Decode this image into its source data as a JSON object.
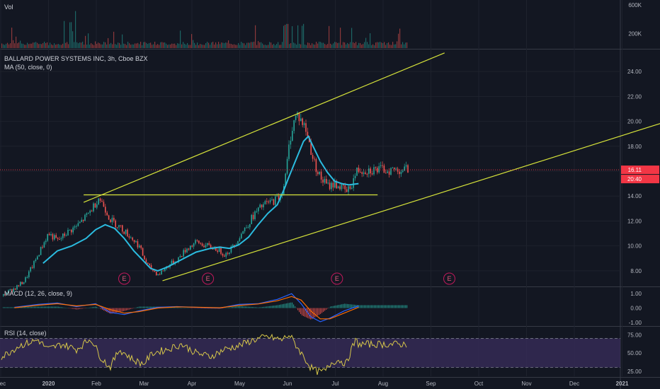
{
  "colors": {
    "background": "#131722",
    "grid": "#1e222d",
    "up": "#26a69a",
    "down": "#ef5350",
    "ma": "#2bbce0",
    "trendline": "#d6e33a",
    "macd_line": "#2962ff",
    "signal_line": "#ff6d00",
    "rsi_line": "#d6c64a",
    "rsi_band": "#3a2d5c",
    "price_tag": "#f23645"
  },
  "chart_data": [
    {
      "type": "bar",
      "pane": "volume",
      "title": "Vol",
      "y_ticks": [
        "600K",
        "200K"
      ],
      "ylim": [
        0,
        650000
      ],
      "description_values": "volume bars"
    },
    {
      "type": "candlestick",
      "pane": "price",
      "title": "BALLARD POWER SYSTEMS INC, 3h, Cboe BZX",
      "indicator": "MA (50, close, 0)",
      "y_ticks": [
        "24.00",
        "22.00",
        "20.00",
        "18.00",
        "16.00",
        "14.00",
        "12.00",
        "10.00",
        "8.00"
      ],
      "ylim": [
        6.8,
        25.6
      ],
      "x_ticks": [
        "Dec",
        "2020",
        "Feb",
        "Mar",
        "Apr",
        "May",
        "Jun",
        "Jul",
        "Aug",
        "Sep",
        "Oct",
        "Nov",
        "Dec",
        "2021"
      ],
      "last_price": "16.11",
      "countdown": "20:40",
      "price_path": [
        [
          0.05,
          6.0
        ],
        [
          0.15,
          6.3
        ],
        [
          0.3,
          6.6
        ],
        [
          0.5,
          7.2
        ],
        [
          0.7,
          8.6
        ],
        [
          0.9,
          10.2
        ],
        [
          1.0,
          11.0
        ],
        [
          1.2,
          10.4
        ],
        [
          1.4,
          11.1
        ],
        [
          1.6,
          11.6
        ],
        [
          1.8,
          12.4
        ],
        [
          1.95,
          13.2
        ],
        [
          2.05,
          13.9
        ],
        [
          2.15,
          13.3
        ],
        [
          2.3,
          12.1
        ],
        [
          2.5,
          11.5
        ],
        [
          2.7,
          10.8
        ],
        [
          2.9,
          10.0
        ],
        [
          3.0,
          9.0
        ],
        [
          3.1,
          8.3
        ],
        [
          3.3,
          7.7
        ],
        [
          3.5,
          8.4
        ],
        [
          3.7,
          8.9
        ],
        [
          3.9,
          9.8
        ],
        [
          4.1,
          10.3
        ],
        [
          4.3,
          10.0
        ],
        [
          4.5,
          9.8
        ],
        [
          4.7,
          9.3
        ],
        [
          4.9,
          10.1
        ],
        [
          5.0,
          10.8
        ],
        [
          5.15,
          11.6
        ],
        [
          5.3,
          12.5
        ],
        [
          5.5,
          13.3
        ],
        [
          5.7,
          13.6
        ],
        [
          5.85,
          14.0
        ],
        [
          5.95,
          15.2
        ],
        [
          6.05,
          18.5
        ],
        [
          6.12,
          19.8
        ],
        [
          6.2,
          20.6
        ],
        [
          6.3,
          20.0
        ],
        [
          6.4,
          19.2
        ],
        [
          6.55,
          16.8
        ],
        [
          6.7,
          15.4
        ],
        [
          6.85,
          14.8
        ],
        [
          7.0,
          15.0
        ],
        [
          7.15,
          14.6
        ],
        [
          7.25,
          14.3
        ],
        [
          7.35,
          15.0
        ],
        [
          7.45,
          16.0
        ],
        [
          7.5,
          16.11
        ]
      ],
      "ma_path": [
        [
          0.9,
          8.6
        ],
        [
          1.2,
          9.6
        ],
        [
          1.5,
          10.0
        ],
        [
          1.8,
          10.6
        ],
        [
          2.0,
          11.3
        ],
        [
          2.2,
          11.7
        ],
        [
          2.4,
          11.4
        ],
        [
          2.6,
          10.6
        ],
        [
          2.8,
          9.6
        ],
        [
          3.0,
          8.8
        ],
        [
          3.15,
          8.2
        ],
        [
          3.3,
          8.0
        ],
        [
          3.5,
          8.3
        ],
        [
          3.8,
          8.9
        ],
        [
          4.1,
          9.5
        ],
        [
          4.4,
          9.8
        ],
        [
          4.6,
          9.9
        ],
        [
          4.8,
          9.8
        ],
        [
          5.0,
          10.1
        ],
        [
          5.2,
          10.7
        ],
        [
          5.4,
          11.7
        ],
        [
          5.6,
          12.6
        ],
        [
          5.8,
          13.3
        ],
        [
          5.95,
          14.6
        ],
        [
          6.05,
          15.6
        ],
        [
          6.2,
          17.0
        ],
        [
          6.35,
          18.4
        ],
        [
          6.45,
          18.8
        ],
        [
          6.55,
          18.0
        ],
        [
          6.7,
          16.8
        ],
        [
          6.85,
          15.9
        ],
        [
          7.0,
          15.2
        ],
        [
          7.15,
          15.0
        ],
        [
          7.3,
          14.9
        ],
        [
          7.5,
          15.0
        ]
      ],
      "trendlines": [
        {
          "from": [
            1.75,
            13.5
          ],
          "to": [
            9.3,
            25.5
          ]
        },
        {
          "from": [
            1.75,
            14.1
          ],
          "to": [
            7.9,
            14.1
          ]
        },
        {
          "from": [
            3.4,
            7.2
          ],
          "to": [
            14.2,
            20.3
          ]
        }
      ],
      "earnings_markers_x": [
        2.6,
        4.35,
        7.05,
        9.4
      ]
    },
    {
      "type": "line",
      "pane": "macd",
      "title": "MACD (12, 26, close, 9)",
      "y_ticks": [
        "1.00",
        "0.00",
        "-1.00"
      ],
      "ylim": [
        -1.2,
        1.4
      ],
      "macd_path": [
        [
          0.3,
          0.05
        ],
        [
          0.8,
          0.25
        ],
        [
          1.2,
          0.35
        ],
        [
          1.6,
          0.1
        ],
        [
          2.0,
          0.3
        ],
        [
          2.3,
          -0.3
        ],
        [
          2.6,
          -0.45
        ],
        [
          2.9,
          -0.2
        ],
        [
          3.3,
          0.05
        ],
        [
          3.7,
          0.1
        ],
        [
          4.1,
          0.05
        ],
        [
          4.6,
          0.0
        ],
        [
          5.0,
          0.25
        ],
        [
          5.4,
          0.3
        ],
        [
          5.8,
          0.6
        ],
        [
          6.1,
          1.0
        ],
        [
          6.3,
          0.3
        ],
        [
          6.5,
          -0.6
        ],
        [
          6.7,
          -0.95
        ],
        [
          6.9,
          -0.7
        ],
        [
          7.2,
          -0.2
        ],
        [
          7.5,
          0.15
        ]
      ],
      "signal_path": [
        [
          0.3,
          0.02
        ],
        [
          0.8,
          0.2
        ],
        [
          1.2,
          0.3
        ],
        [
          1.6,
          0.15
        ],
        [
          2.0,
          0.25
        ],
        [
          2.3,
          -0.1
        ],
        [
          2.6,
          -0.35
        ],
        [
          2.9,
          -0.25
        ],
        [
          3.3,
          0.0
        ],
        [
          3.7,
          0.08
        ],
        [
          4.1,
          0.06
        ],
        [
          4.6,
          0.02
        ],
        [
          5.0,
          0.18
        ],
        [
          5.4,
          0.28
        ],
        [
          5.8,
          0.5
        ],
        [
          6.1,
          0.8
        ],
        [
          6.3,
          0.55
        ],
        [
          6.5,
          -0.2
        ],
        [
          6.7,
          -0.75
        ],
        [
          6.9,
          -0.75
        ],
        [
          7.2,
          -0.35
        ],
        [
          7.5,
          0.05
        ]
      ]
    },
    {
      "type": "line",
      "pane": "rsi",
      "title": "RSI (14, close)",
      "y_ticks": [
        "75.00",
        "50.00",
        "25.00"
      ],
      "ylim": [
        18,
        85
      ],
      "band": [
        30,
        70
      ],
      "rsi_path": [
        [
          0.05,
          45
        ],
        [
          0.4,
          60
        ],
        [
          0.8,
          68
        ],
        [
          1.0,
          55
        ],
        [
          1.3,
          62
        ],
        [
          1.6,
          55
        ],
        [
          1.9,
          70
        ],
        [
          2.1,
          45
        ],
        [
          2.3,
          30
        ],
        [
          2.5,
          55
        ],
        [
          2.8,
          40
        ],
        [
          3.0,
          35
        ],
        [
          3.2,
          50
        ],
        [
          3.5,
          55
        ],
        [
          3.8,
          62
        ],
        [
          4.1,
          50
        ],
        [
          4.4,
          45
        ],
        [
          4.7,
          55
        ],
        [
          5.0,
          60
        ],
        [
          5.3,
          68
        ],
        [
          5.6,
          72
        ],
        [
          5.9,
          68
        ],
        [
          6.05,
          75
        ],
        [
          6.2,
          60
        ],
        [
          6.35,
          45
        ],
        [
          6.5,
          30
        ],
        [
          6.65,
          24
        ],
        [
          6.8,
          25
        ],
        [
          6.95,
          38
        ],
        [
          7.1,
          40
        ],
        [
          7.25,
          35
        ],
        [
          7.35,
          55
        ],
        [
          7.45,
          68
        ],
        [
          7.5,
          62
        ]
      ]
    }
  ]
}
